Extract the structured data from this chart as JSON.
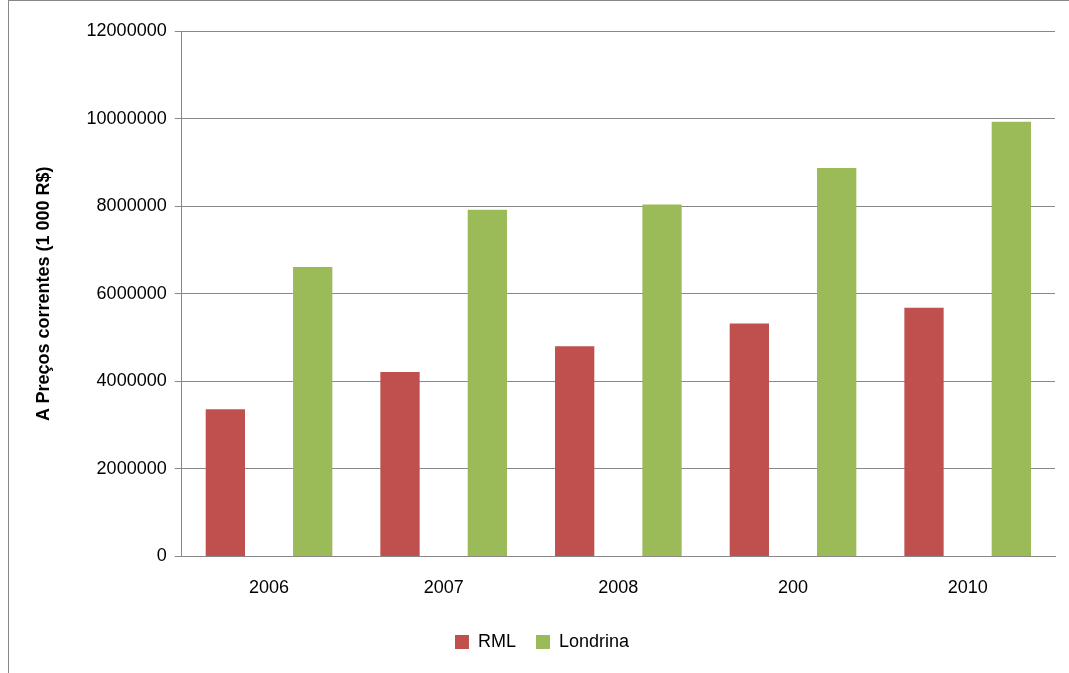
{
  "chart_data": {
    "type": "bar",
    "ylabel": "A Preços correntes (1 000 R$)",
    "categories": [
      "2006",
      "2007",
      "2008",
      "200",
      "2010"
    ],
    "series": [
      {
        "name": "RML",
        "color": "#c0504d",
        "values": [
          3360000,
          4210000,
          4800000,
          5320000,
          5680000
        ]
      },
      {
        "name": "Londrina",
        "color": "#9bbb59",
        "values": [
          6610000,
          7920000,
          8040000,
          8870000,
          9930000
        ]
      }
    ],
    "ylim": [
      0,
      12000000
    ],
    "yticks": [
      0,
      2000000,
      4000000,
      6000000,
      8000000,
      10000000,
      12000000
    ],
    "grid": "y",
    "legend": "bottom"
  }
}
